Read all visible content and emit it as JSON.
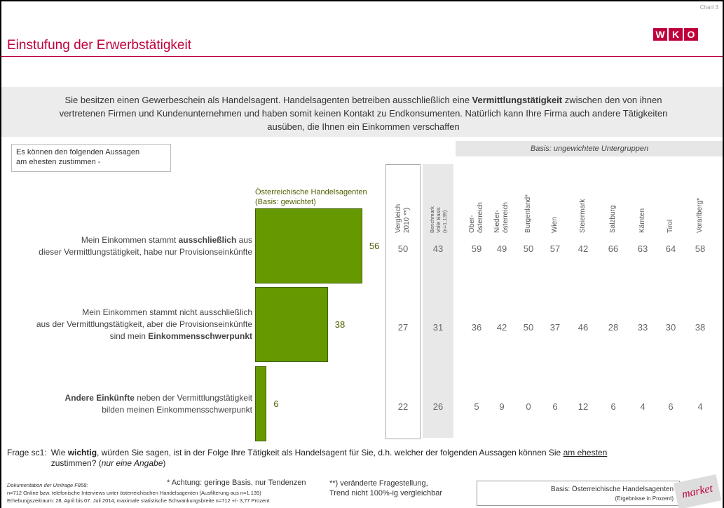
{
  "chart_data": {
    "type": "bar",
    "orientation": "horizontal",
    "chart_number": "Chart 3",
    "title": "Einstufung der Erwerbstätigkeit",
    "question": [
      [
        "Sie besitzen einen Gewerbeschein als Handelsagent. Handelsagenten betreiben ausschließlich eine ",
        {
          "text": "Vermittlungstätigkeit",
          "style": "bold"
        },
        " zwischen den von ihnen"
      ],
      "vertretenen Firmen und Kundenunternehmen und haben somit keinen Kontakt zu Endkonsumenten. Natürlich kann Ihre Firma auch andere Tätigkeiten",
      "ausüben, die Ihnen ein Einkommen verschaffen"
    ],
    "statement_header": [
      "Es können den folgenden Aussagen",
      "am ehesten zustimmen -"
    ],
    "subgroup_header": "Basis: ungewichtete Untergruppen",
    "categories": [
      [
        [
          "Mein Einkommen stammt ",
          {
            "text": "ausschließlich",
            "style": "bold"
          },
          " aus"
        ],
        "dieser Vermittlungstätigkeit, habe nur Provisionseinkünfte"
      ],
      [
        "Mein Einkommen stammt nicht ausschließlich",
        "aus der Vermittlungstätigkeit, aber die Provisionseinkünfte",
        [
          "sind mein ",
          {
            "text": "Einkommensschwerpunkt",
            "style": "bold"
          }
        ]
      ],
      [
        [
          {
            "text": "Andere Einkünfte",
            "style": "bold"
          },
          " neben der Vermittlungstätigkeit"
        ],
        "bilden meinen Einkommensschwerpunkt"
      ]
    ],
    "series": [
      {
        "name": "Österreichische Handelsagenten",
        "note": "(Basis: gewichtet)",
        "color": "#669900",
        "values": [
          56,
          38,
          6
        ]
      }
    ],
    "xlim": [
      0,
      100
    ],
    "columns": [
      {
        "header": [
          "Vergleich",
          "2010 **)"
        ],
        "style": "outlined",
        "values": [
          50,
          27,
          22
        ]
      },
      {
        "header": [
          "Benchmark",
          "Volle Basis",
          "(n=1.139)"
        ],
        "style": "shaded",
        "values": [
          43,
          31,
          26
        ]
      },
      {
        "header": [
          "Ober-",
          "österreich"
        ],
        "values": [
          59,
          36,
          5
        ]
      },
      {
        "header": [
          "Nieder-",
          "österreich"
        ],
        "values": [
          49,
          42,
          9
        ]
      },
      {
        "header": [
          "Burgenland*"
        ],
        "values": [
          50,
          50,
          0
        ]
      },
      {
        "header": [
          "Wien"
        ],
        "values": [
          57,
          37,
          6
        ]
      },
      {
        "header": [
          "Steiermark"
        ],
        "values": [
          42,
          46,
          12
        ]
      },
      {
        "header": [
          "Salzburg"
        ],
        "values": [
          66,
          28,
          6
        ]
      },
      {
        "header": [
          "Kärnten"
        ],
        "values": [
          63,
          33,
          4
        ]
      },
      {
        "header": [
          "Tirol"
        ],
        "values": [
          64,
          30,
          6
        ]
      },
      {
        "header": [
          "Vorarlberg*"
        ],
        "values": [
          58,
          38,
          4
        ]
      }
    ],
    "footnote": {
      "label": "Frage sc1:",
      "lines": [
        [
          "Wie ",
          {
            "text": "wichtig",
            "style": "bold"
          },
          ", würden Sie sagen, ist in der Folge Ihre Tätigkeit als Handelsagent für Sie, d.h. welcher der folgenden Aussagen können Sie ",
          {
            "text": "am ehesten",
            "style": "underline"
          }
        ],
        [
          "zustimmen? (",
          {
            "text": "nur eine Angabe",
            "style": "italic"
          },
          ")"
        ]
      ]
    },
    "documentation": [
      [
        {
          "text": "Dokumentation der Umfrage F858:",
          "style": "italic"
        }
      ],
      "n=712 Online bzw. telefonische Interviews unter österreichischen Handelsagenten (Ausfilterung aus n=1.139)",
      "Erhebungszeitraum: 28. April bis 07. Juli 2014; maximale statistische Schwankungsbreite n=712 +/- 3,77 Prozent"
    ],
    "note_small_base": "* Achtung: geringe Basis, nur Tendenzen",
    "note_changed": [
      "**) veränderte Fragestellung,",
      "Trend nicht 100%-ig vergleichbar"
    ],
    "basis_box": [
      "Basis: Österreichische Handelsagenten",
      "(Ergebnisse in Prozent)"
    ],
    "logo_letters": [
      "W",
      "K",
      "O"
    ],
    "market_logo": "market"
  }
}
